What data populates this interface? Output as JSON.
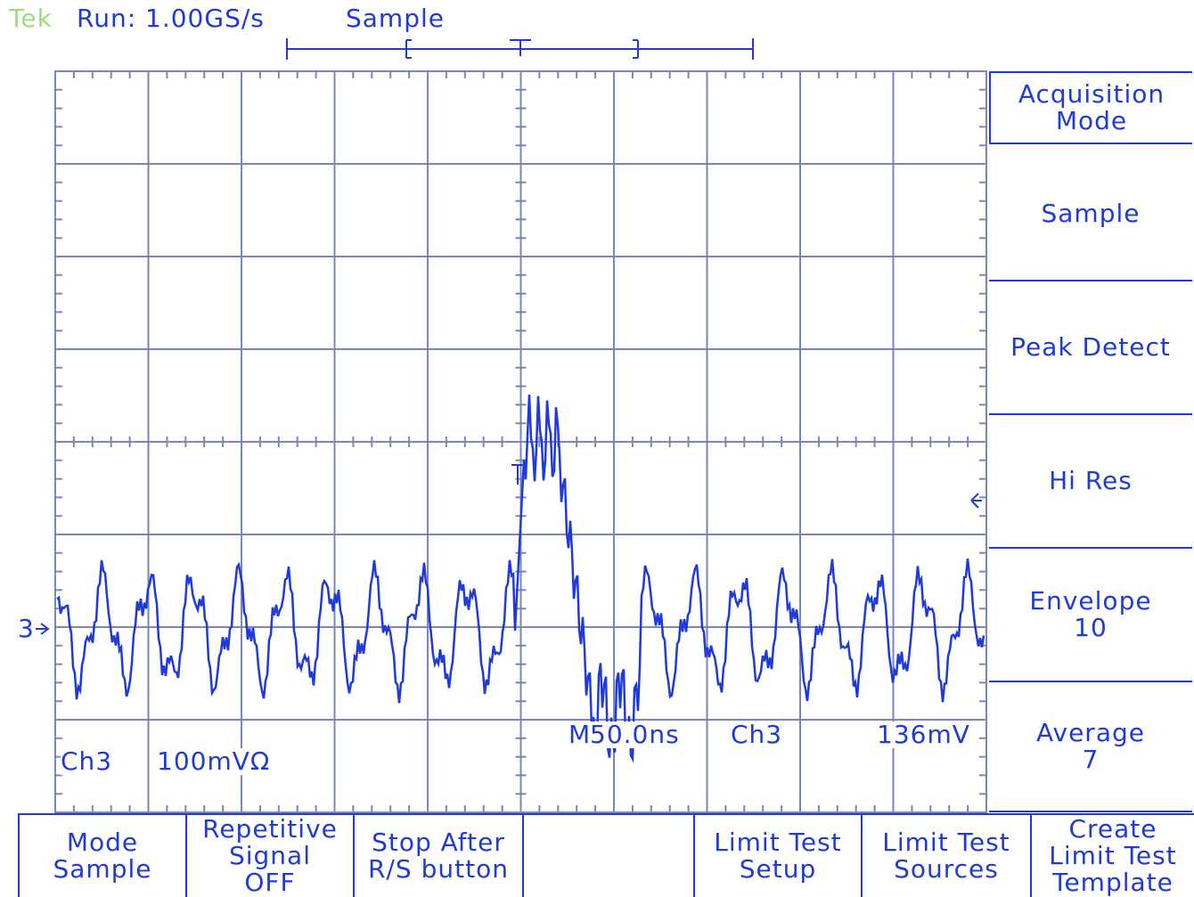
{
  "header": {
    "brand": "Tek",
    "run_status": "Run: 1.00GS/s",
    "acq_label": "Sample"
  },
  "colors": {
    "trace": "#1f3ad9",
    "graticule": "#7a86b8",
    "brand": "#9fdc7a",
    "background": "#ffffff"
  },
  "channel_marker": "3",
  "trigger_marker": "T",
  "channel_readout": {
    "channel": "Ch3",
    "scale": "100mVΩ"
  },
  "timebase_readout": {
    "prefix": "M",
    "time": "50.0ns",
    "channel": "Ch3",
    "level": "136mV"
  },
  "side_menu": [
    {
      "lines": [
        "Acquisition",
        "Mode"
      ],
      "icon": ""
    },
    {
      "lines": [
        "Sample"
      ],
      "icon": ""
    },
    {
      "lines": [
        "Peak Detect"
      ],
      "icon": ""
    },
    {
      "lines": [
        "Hi Res"
      ],
      "icon": "selected-arrow-icon"
    },
    {
      "lines": [
        "Envelope",
        "10"
      ],
      "icon": ""
    },
    {
      "lines": [
        "Average",
        "7"
      ],
      "icon": ""
    }
  ],
  "bottom_menu": [
    {
      "lines": [
        "Mode",
        "Sample"
      ]
    },
    {
      "lines": [
        "Repetitive",
        "Signal",
        "OFF"
      ]
    },
    {
      "lines": [
        "Stop After",
        "R/S button"
      ]
    },
    {
      "lines": []
    },
    {
      "lines": [
        "Limit Test",
        "Setup"
      ]
    },
    {
      "lines": [
        "Limit Test",
        "Sources"
      ]
    },
    {
      "lines": [
        "Create",
        "Limit Test",
        "Template"
      ]
    }
  ]
}
